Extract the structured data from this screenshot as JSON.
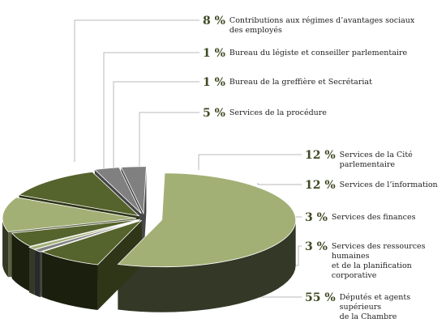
{
  "chart_data": {
    "type": "pie",
    "title": "",
    "slices": [
      {
        "id": "deputes",
        "percent": "55 %",
        "value": 55,
        "lines": [
          "Députés et agents supérieurs",
          "de la Chambre"
        ],
        "color": "#a2b076"
      },
      {
        "id": "contrib",
        "percent": "8 %",
        "value": 8,
        "lines": [
          "Contributions aux régimes d’avantages sociaux",
          "des employés"
        ],
        "color": "#55632c"
      },
      {
        "id": "legiste",
        "percent": "1 %",
        "value": 1,
        "lines": [
          "Bureau du légiste et conseiller parlementaire"
        ],
        "color": "#808080"
      },
      {
        "id": "greffiere",
        "percent": "1 %",
        "value": 1,
        "lines": [
          "Bureau de la greffière et Secrétariat"
        ],
        "color": "#a2b076"
      },
      {
        "id": "procedure",
        "percent": "5 %",
        "value": 5,
        "lines": [
          "Services de la procédure"
        ],
        "color": "#55632c"
      },
      {
        "id": "cite",
        "percent": "12 %",
        "value": 12,
        "lines": [
          "Services de la Cité parlementaire"
        ],
        "color": "#a2b076"
      },
      {
        "id": "information",
        "percent": "12 %",
        "value": 12,
        "lines": [
          "Services de l’information"
        ],
        "color": "#55632c"
      },
      {
        "id": "finances",
        "percent": "3 %",
        "value": 3,
        "lines": [
          "Services des finances"
        ],
        "color": "#808080"
      },
      {
        "id": "rh",
        "percent": "3 %",
        "value": 3,
        "lines": [
          "Services des ressources humaines",
          "et de la planification corporative"
        ],
        "color": "#808080"
      }
    ]
  }
}
